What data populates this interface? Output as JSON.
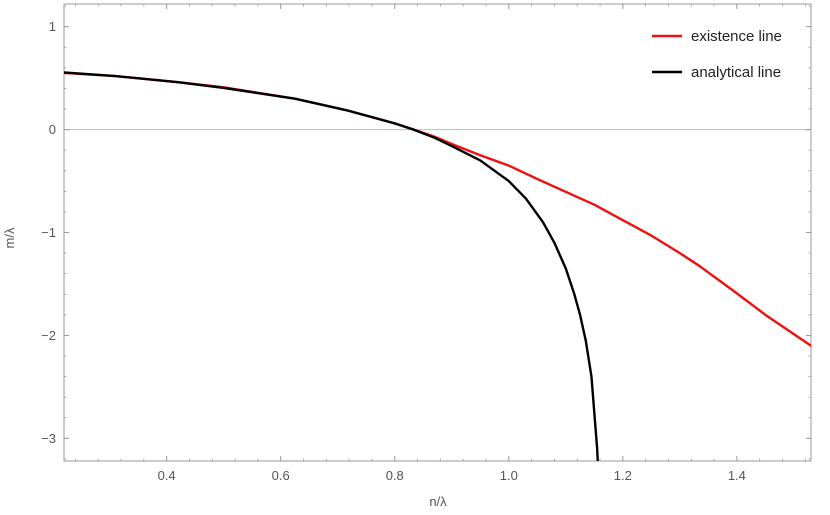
{
  "chart_data": {
    "type": "line",
    "xlabel": "n/λ",
    "ylabel": "m/λ",
    "xlim": [
      0.22,
      1.53
    ],
    "ylim": [
      -3.22,
      1.22
    ],
    "x_ticks": [
      0.4,
      0.6,
      0.8,
      1.0,
      1.2,
      1.4
    ],
    "x_tick_labels": [
      "0.4",
      "0.6",
      "0.8",
      "1.0",
      "1.2",
      "1.4"
    ],
    "y_ticks": [
      -3,
      -2,
      -1,
      0,
      1
    ],
    "y_tick_labels": [
      "−3",
      "−2",
      "−1",
      "0",
      "1"
    ],
    "grid": false,
    "zero_line": true,
    "legend_position": "top-right",
    "series": [
      {
        "name": "existence line",
        "color": "#ee1111",
        "points": [
          [
            0.22,
            0.55
          ],
          [
            0.31,
            0.52
          ],
          [
            0.42,
            0.46
          ],
          [
            0.5,
            0.41
          ],
          [
            0.625,
            0.3
          ],
          [
            0.714,
            0.19
          ],
          [
            0.8,
            0.06
          ],
          [
            0.833,
            0.0
          ],
          [
            0.87,
            -0.07
          ],
          [
            0.9,
            -0.14
          ],
          [
            0.95,
            -0.25
          ],
          [
            1.0,
            -0.35
          ],
          [
            1.05,
            -0.48
          ],
          [
            1.11,
            -0.63
          ],
          [
            1.15,
            -0.73
          ],
          [
            1.2,
            -0.88
          ],
          [
            1.25,
            -1.03
          ],
          [
            1.3,
            -1.2
          ],
          [
            1.333,
            -1.32
          ],
          [
            1.39,
            -1.55
          ],
          [
            1.45,
            -1.8
          ],
          [
            1.53,
            -2.1
          ]
        ]
      },
      {
        "name": "analytical line",
        "color": "#000000",
        "points": [
          [
            0.22,
            0.555
          ],
          [
            0.31,
            0.52
          ],
          [
            0.42,
            0.46
          ],
          [
            0.5,
            0.405
          ],
          [
            0.625,
            0.3
          ],
          [
            0.714,
            0.19
          ],
          [
            0.8,
            0.06
          ],
          [
            0.833,
            0.0
          ],
          [
            0.87,
            -0.08
          ],
          [
            0.9,
            -0.16
          ],
          [
            0.95,
            -0.3
          ],
          [
            1.0,
            -0.5
          ],
          [
            1.03,
            -0.67
          ],
          [
            1.06,
            -0.9
          ],
          [
            1.08,
            -1.1
          ],
          [
            1.1,
            -1.35
          ],
          [
            1.115,
            -1.6
          ],
          [
            1.125,
            -1.8
          ],
          [
            1.135,
            -2.05
          ],
          [
            1.145,
            -2.4
          ],
          [
            1.15,
            -2.75
          ],
          [
            1.155,
            -3.1
          ],
          [
            1.156,
            -3.22
          ]
        ]
      }
    ]
  }
}
